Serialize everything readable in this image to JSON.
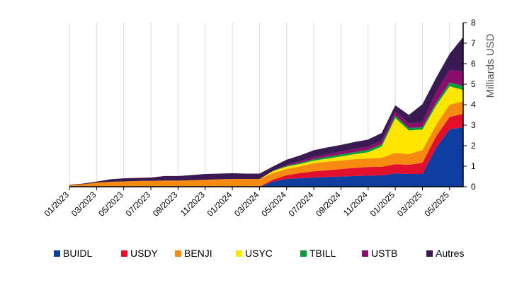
{
  "chart_data": {
    "type": "area",
    "stacked": true,
    "ylabel": "Milliards USD",
    "ylim": [
      0,
      8
    ],
    "yticks": [
      "0",
      "1",
      "2",
      "3",
      "4",
      "5",
      "6",
      "7",
      "8"
    ],
    "y_axis_position": "right",
    "grid": "vertical",
    "legend_position": "bottom",
    "x": [
      "01/2023",
      "02/2023",
      "03/2023",
      "04/2023",
      "05/2023",
      "06/2023",
      "07/2023",
      "08/2023",
      "09/2023",
      "10/2023",
      "11/2023",
      "12/2023",
      "01/2024",
      "02/2024",
      "03/2024",
      "04/2024",
      "05/2024",
      "06/2024",
      "07/2024",
      "08/2024",
      "09/2024",
      "10/2024",
      "11/2024",
      "12/2024",
      "01/2025",
      "02/2025",
      "03/2025",
      "04/2025",
      "05/2025",
      "06/2025"
    ],
    "xtick_labels": [
      "01/2023",
      "03/2023",
      "05/2023",
      "07/2023",
      "09/2023",
      "11/2023",
      "01/2024",
      "03/2024",
      "05/2024",
      "07/2024",
      "09/2024",
      "11/2024",
      "01/2025",
      "03/2025",
      "05/2025"
    ],
    "series": [
      {
        "name": "BUIDL",
        "color": "#0d3ea0",
        "values": [
          0,
          0,
          0,
          0,
          0,
          0,
          0,
          0,
          0,
          0,
          0,
          0,
          0,
          0,
          0,
          0.25,
          0.38,
          0.42,
          0.45,
          0.48,
          0.5,
          0.52,
          0.54,
          0.55,
          0.65,
          0.62,
          0.62,
          1.9,
          2.8,
          2.9
        ]
      },
      {
        "name": "USDY",
        "color": "#e2102c",
        "values": [
          0,
          0,
          0,
          0,
          0,
          0,
          0,
          0,
          0,
          0,
          0,
          0,
          0,
          0,
          0,
          0.1,
          0.18,
          0.25,
          0.3,
          0.32,
          0.36,
          0.4,
          0.42,
          0.42,
          0.45,
          0.45,
          0.55,
          0.55,
          0.6,
          0.65
        ]
      },
      {
        "name": "BENJI",
        "color": "#f78a10",
        "values": [
          0.08,
          0.12,
          0.2,
          0.24,
          0.26,
          0.28,
          0.29,
          0.3,
          0.3,
          0.32,
          0.34,
          0.36,
          0.38,
          0.38,
          0.38,
          0.32,
          0.3,
          0.32,
          0.4,
          0.42,
          0.42,
          0.42,
          0.42,
          0.44,
          0.55,
          0.52,
          0.62,
          0.55,
          0.6,
          0.62
        ]
      },
      {
        "name": "USYC",
        "color": "#ffe600",
        "values": [
          0,
          0,
          0,
          0,
          0,
          0,
          0,
          0,
          0,
          0,
          0,
          0,
          0,
          0,
          0,
          0.1,
          0.12,
          0.12,
          0.12,
          0.15,
          0.2,
          0.25,
          0.3,
          0.55,
          1.7,
          1.15,
          1.0,
          0.95,
          0.9,
          0.55
        ]
      },
      {
        "name": "TBILL",
        "color": "#0a9a3c",
        "values": [
          0,
          0,
          0,
          0,
          0,
          0,
          0,
          0,
          0,
          0,
          0,
          0,
          0,
          0,
          0,
          0,
          0.04,
          0.06,
          0.08,
          0.1,
          0.1,
          0.1,
          0.12,
          0.12,
          0.12,
          0.12,
          0.12,
          0.15,
          0.18,
          0.2
        ]
      },
      {
        "name": "USTB",
        "color": "#8c0c6e",
        "values": [
          0,
          0,
          0,
          0,
          0,
          0,
          0,
          0,
          0,
          0,
          0,
          0,
          0,
          0,
          0,
          0,
          0.04,
          0.08,
          0.1,
          0.12,
          0.14,
          0.15,
          0.16,
          0.16,
          0.2,
          0.22,
          0.25,
          0.5,
          0.6,
          0.7
        ]
      },
      {
        "name": "Autres",
        "color": "#3a1a52",
        "values": [
          0.02,
          0.03,
          0.05,
          0.12,
          0.15,
          0.15,
          0.16,
          0.22,
          0.22,
          0.25,
          0.28,
          0.28,
          0.28,
          0.26,
          0.26,
          0.22,
          0.26,
          0.28,
          0.33,
          0.33,
          0.32,
          0.34,
          0.34,
          0.38,
          0.3,
          0.42,
          0.86,
          0.7,
          0.8,
          1.68
        ]
      }
    ]
  }
}
